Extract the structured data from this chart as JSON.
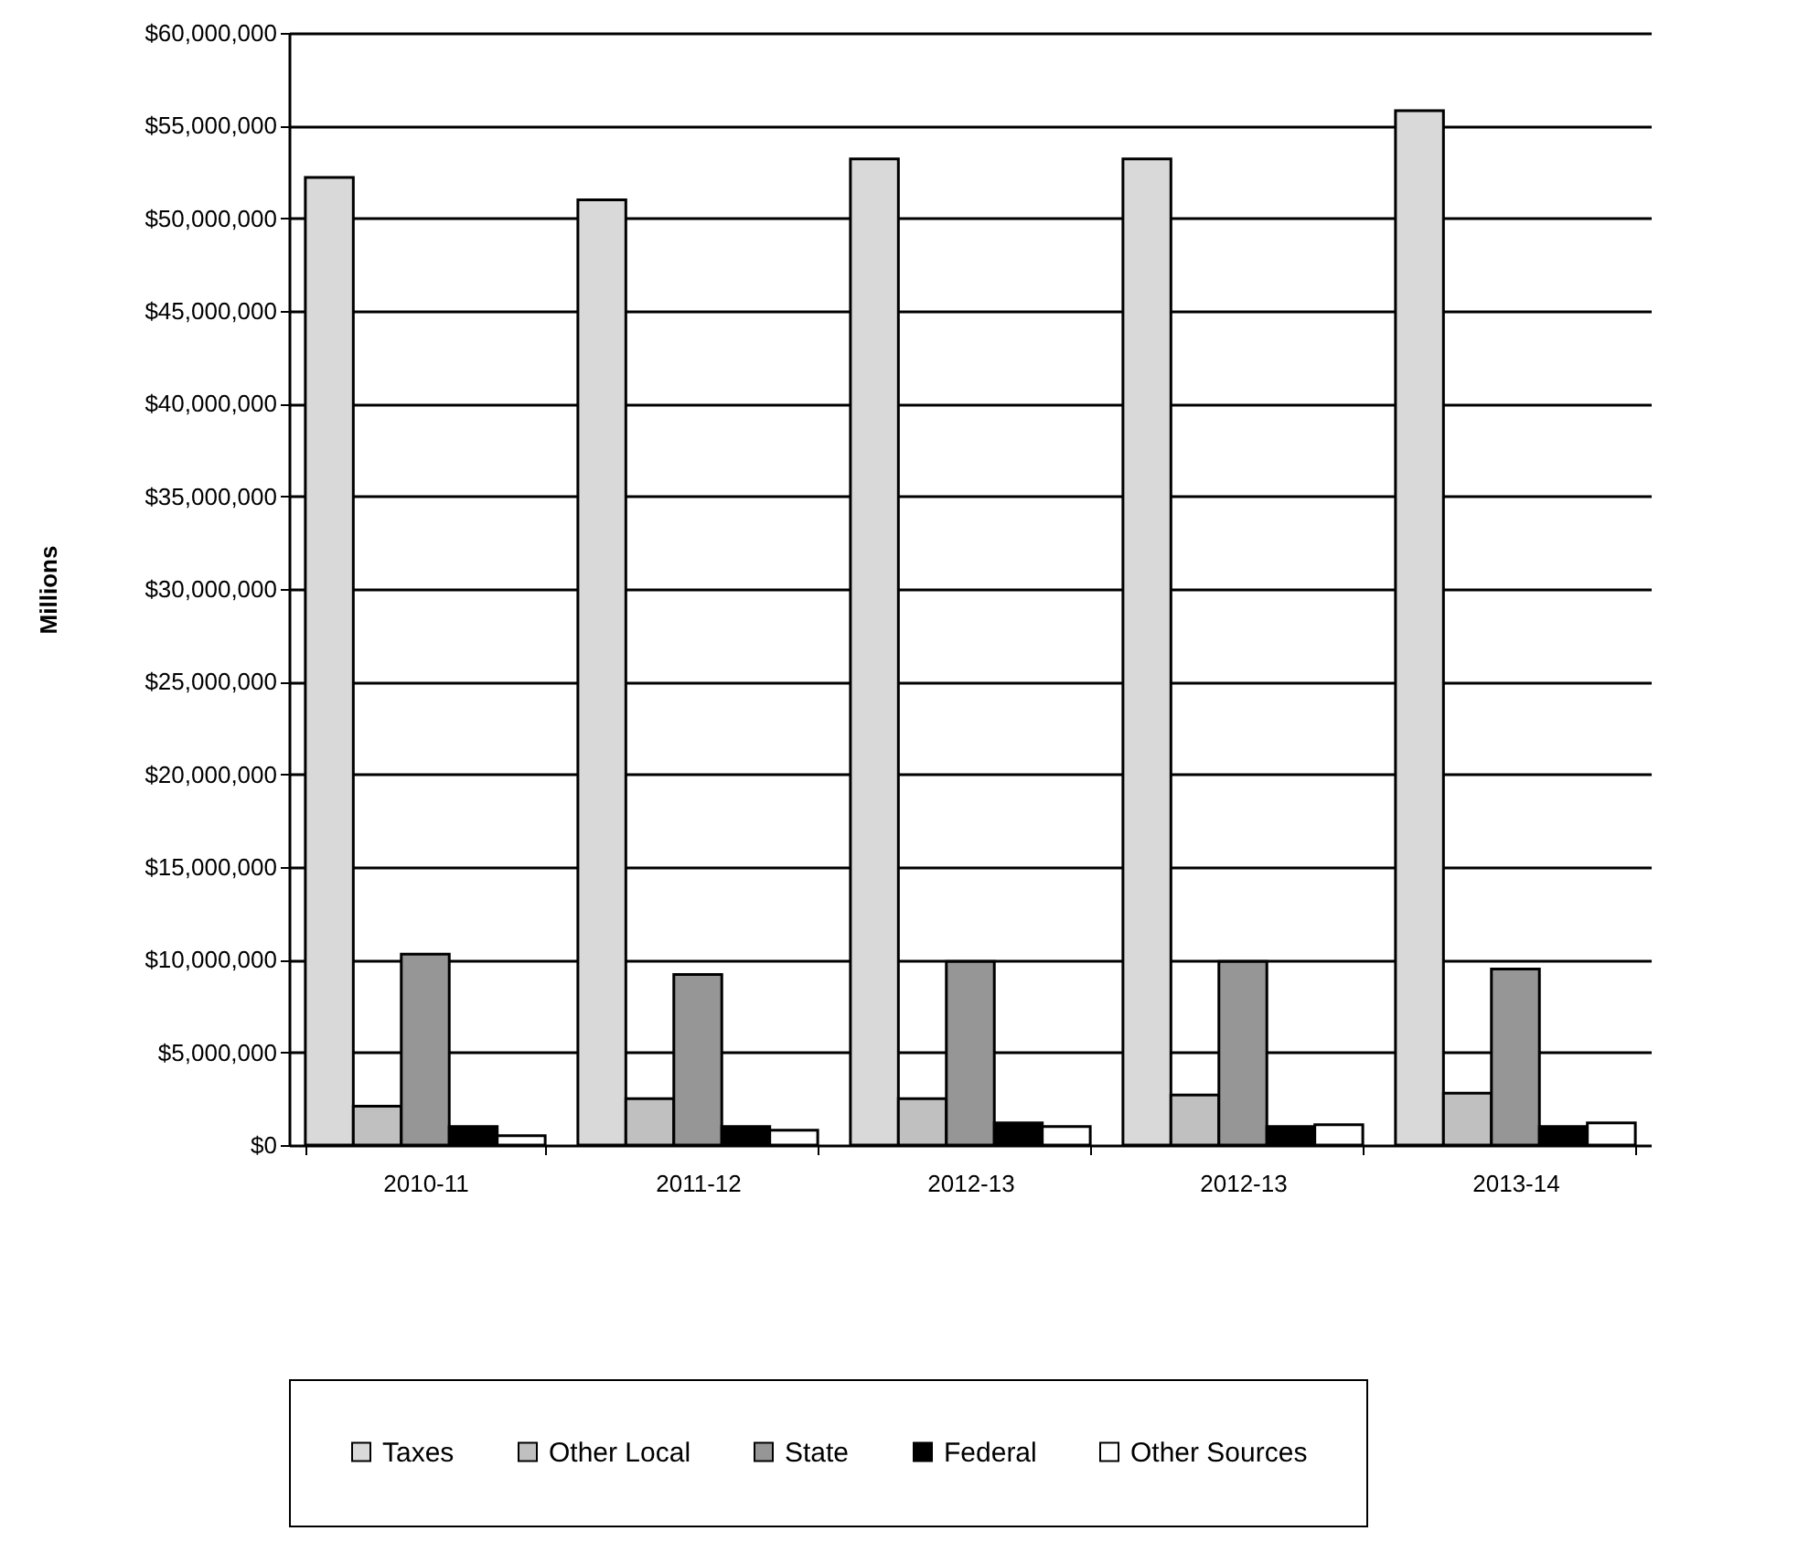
{
  "chart_data": {
    "type": "bar",
    "ylabel": "Millions",
    "categories": [
      "2010-11",
      "2011-12",
      "2012-13",
      "2012-13",
      "2013-14"
    ],
    "series": [
      {
        "name": "Taxes",
        "color": "#d9d9d9",
        "values": [
          52200000,
          51000000,
          53200000,
          53200000,
          55800000
        ]
      },
      {
        "name": "Other Local",
        "color": "#c0c0c0",
        "values": [
          2100000,
          2500000,
          2500000,
          2700000,
          2800000
        ]
      },
      {
        "name": "State",
        "color": "#969696",
        "values": [
          10300000,
          9200000,
          9900000,
          9900000,
          9500000
        ]
      },
      {
        "name": "Federal",
        "color": "#000000",
        "values": [
          1000000,
          1000000,
          1200000,
          1000000,
          1000000
        ]
      },
      {
        "name": "Other Sources",
        "color": "#ffffff",
        "values": [
          500000,
          800000,
          1000000,
          1100000,
          1200000
        ]
      }
    ],
    "ylim": [
      0,
      60000000
    ],
    "yticks": [
      {
        "value": 0,
        "label": "$0"
      },
      {
        "value": 5000000,
        "label": "$5,000,000"
      },
      {
        "value": 10000000,
        "label": "$10,000,000"
      },
      {
        "value": 15000000,
        "label": "$15,000,000"
      },
      {
        "value": 20000000,
        "label": "$20,000,000"
      },
      {
        "value": 25000000,
        "label": "$25,000,000"
      },
      {
        "value": 30000000,
        "label": "$30,000,000"
      },
      {
        "value": 35000000,
        "label": "$35,000,000"
      },
      {
        "value": 40000000,
        "label": "$40,000,000"
      },
      {
        "value": 45000000,
        "label": "$45,000,000"
      },
      {
        "value": 50000000,
        "label": "$50,000,000"
      },
      {
        "value": 55000000,
        "label": "$55,000,000"
      },
      {
        "value": 60000000,
        "label": "$60,000,000"
      }
    ],
    "grid": "y",
    "legend": "bottom"
  }
}
